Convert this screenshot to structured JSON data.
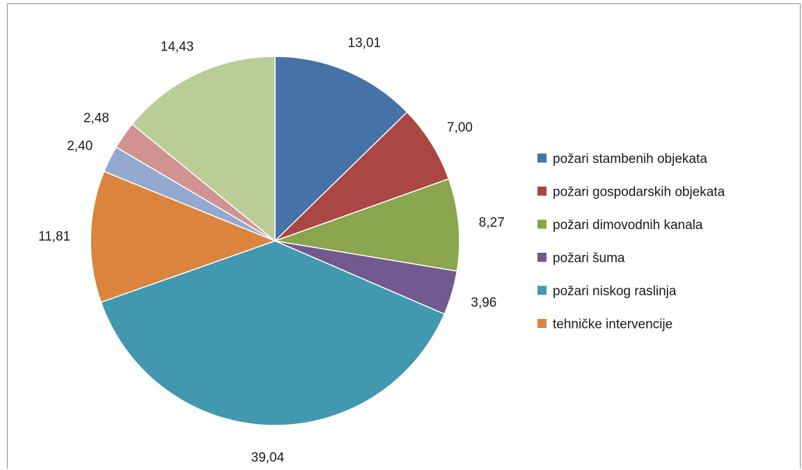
{
  "chart_data": {
    "type": "pie",
    "title": "",
    "slices": [
      {
        "label": "požari stambenih objekata",
        "value": 13.01,
        "value_label": "13,01",
        "color": "#4572a7",
        "in_legend": true
      },
      {
        "label": "požari gospodarskih objekata",
        "value": 7.0,
        "value_label": "7,00",
        "color": "#aa4643",
        "in_legend": true
      },
      {
        "label": "požari dimovodnih kanala",
        "value": 8.27,
        "value_label": "8,27",
        "color": "#89a54e",
        "in_legend": true
      },
      {
        "label": "požari šuma",
        "value": 3.96,
        "value_label": "3,96",
        "color": "#71588f",
        "in_legend": true
      },
      {
        "label": "požari niskog raslinja",
        "value": 39.04,
        "value_label": "39,04",
        "color": "#4198af",
        "in_legend": true
      },
      {
        "label": "tehničke intervencije",
        "value": 11.81,
        "value_label": "11,81",
        "color": "#db843d",
        "in_legend": true
      },
      {
        "label": "",
        "value": 2.4,
        "value_label": "2,40",
        "color": "#93a9cf",
        "in_legend": false
      },
      {
        "label": "",
        "value": 2.48,
        "value_label": "2,48",
        "color": "#d19392",
        "in_legend": false
      },
      {
        "label": "",
        "value": 14.43,
        "value_label": "14,43",
        "color": "#b9cd96",
        "in_legend": false
      }
    ],
    "start_angle": "12 o'clock",
    "direction": "clockwise",
    "legend_position": "right"
  }
}
